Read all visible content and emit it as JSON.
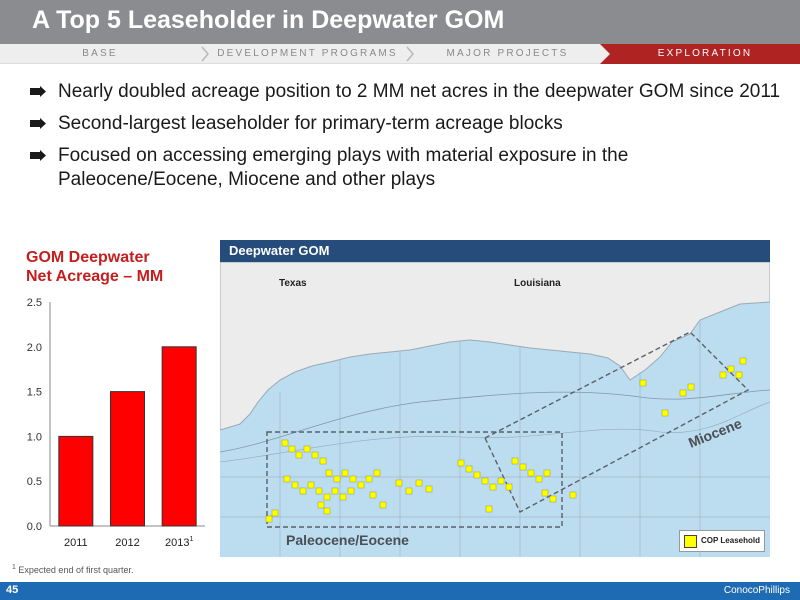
{
  "slide": {
    "title": "A Top 5 Leaseholder in Deepwater GOM",
    "page_number": "45",
    "logo": "ConocoPhillips",
    "footnote_mark": "1",
    "footnote": " Expected end of first quarter."
  },
  "nav": {
    "items": [
      {
        "label": "BASE"
      },
      {
        "label": "DEVELOPMENT PROGRAMS"
      },
      {
        "label": "MAJOR PROJECTS"
      },
      {
        "label": "EXPLORATION"
      }
    ],
    "active_index": 3,
    "active_color": "#b02323"
  },
  "bullets": [
    "Nearly doubled acreage position to 2 MM net acres in the deepwater GOM since 2011",
    "Second-largest leaseholder for primary-term acreage blocks",
    "Focused on accessing emerging plays with material exposure in the Paleocene/Eocene, Miocene and other plays"
  ],
  "chart_data": {
    "type": "bar",
    "title_line1": "GOM Deepwater",
    "title_line2": "Net Acreage – MM",
    "categories": [
      "2011",
      "2012",
      "2013"
    ],
    "category_superscripts": [
      "",
      "",
      "1"
    ],
    "values": [
      1.0,
      1.5,
      2.0
    ],
    "ylim": [
      0,
      2.5
    ],
    "yticks": [
      "0.0",
      "0.5",
      "1.0",
      "1.5",
      "2.0",
      "2.5"
    ],
    "bar_color": "#ff0000",
    "grid": false
  },
  "map": {
    "title": "Deepwater GOM",
    "state_labels": [
      "Texas",
      "Louisiana"
    ],
    "zones": [
      "Paleocene/Eocene",
      "Miocene"
    ],
    "legend_label": "COP Leasehold",
    "legend_color": "#ffff00",
    "water_color": "#bcdcef",
    "land_color": "#ececec"
  }
}
